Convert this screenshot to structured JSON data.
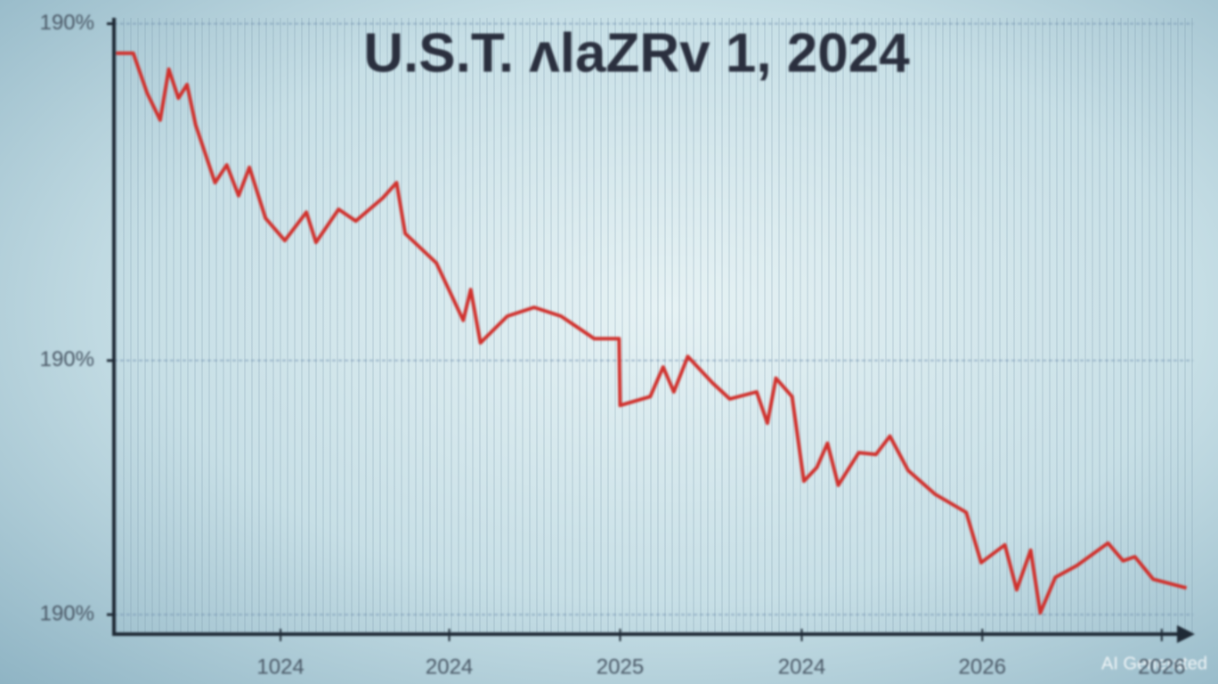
{
  "chart_data": {
    "type": "line",
    "title": "U.S.T. ʌlaZRv 1, 2024",
    "watermark": "AI Generated",
    "xlim": [
      0,
      100
    ],
    "xticks": [
      {
        "value": 15.5,
        "label": "1024"
      },
      {
        "value": 31.2,
        "label": "2024"
      },
      {
        "value": 47.1,
        "label": "2025"
      },
      {
        "value": 64.0,
        "label": "2024"
      },
      {
        "value": 80.8,
        "label": "2026"
      },
      {
        "value": 97.5,
        "label": "2026"
      }
    ],
    "ylim": [
      -3,
      101
    ],
    "yticks": [
      {
        "value": 0,
        "label": "190%"
      },
      {
        "value": 43,
        "label": "190%"
      },
      {
        "value": 100,
        "label": "190%"
      }
    ],
    "grid": true,
    "series": [
      {
        "color": "#d0312d",
        "x": [
          0.2,
          1.8,
          3.1,
          4.3,
          5.1,
          6.0,
          6.8,
          7.6,
          9.4,
          10.5,
          11.6,
          12.6,
          14.1,
          15.9,
          17.9,
          18.8,
          20.9,
          22.5,
          25.0,
          26.3,
          27.1,
          30.0,
          32.5,
          33.2,
          34.1,
          36.6,
          39.1,
          41.6,
          44.7,
          47.0,
          47.1,
          49.9,
          51.1,
          52.1,
          53.4,
          55.7,
          57.3,
          59.8,
          60.8,
          61.6,
          63.1,
          64.2,
          65.4,
          66.4,
          67.4,
          69.3,
          70.9,
          72.2,
          73.9,
          76.4,
          79.3,
          80.7,
          82.9,
          84.0,
          85.3,
          86.2,
          87.6,
          89.6,
          92.5,
          93.9,
          95.0,
          96.7,
          99.8
        ],
        "values": [
          95.0,
          95.0,
          88.2,
          83.7,
          92.3,
          87.4,
          89.7,
          82.9,
          73.1,
          76.1,
          70.9,
          75.7,
          67.1,
          63.3,
          68.1,
          63.0,
          68.6,
          66.6,
          70.5,
          73.1,
          64.5,
          59.5,
          49.8,
          55.0,
          46.0,
          50.5,
          52.0,
          50.5,
          46.7,
          46.7,
          35.4,
          36.9,
          41.9,
          37.7,
          43.7,
          39.2,
          36.5,
          37.7,
          32.4,
          40.0,
          36.9,
          22.6,
          24.9,
          29.0,
          21.9,
          27.4,
          27.1,
          30.2,
          24.4,
          20.4,
          17.3,
          8.8,
          11.8,
          4.2,
          10.9,
          0.3,
          6.3,
          8.3,
          12.1,
          9.1,
          9.8,
          6.0,
          4.5
        ]
      }
    ]
  }
}
